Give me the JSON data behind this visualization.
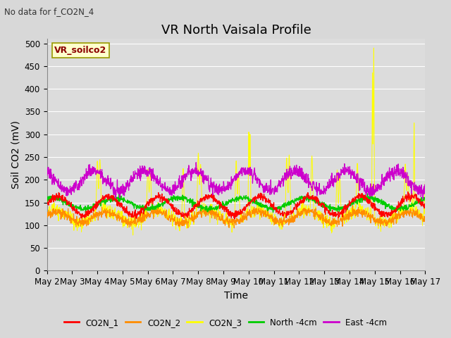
{
  "title": "VR North Vaisala Profile",
  "subtitle": "No data for f_CO2N_4",
  "ylabel": "Soil CO2 (mV)",
  "xlabel": "Time",
  "box_label": "VR_soilco2",
  "ylim": [
    0,
    510
  ],
  "yticks": [
    0,
    50,
    100,
    150,
    200,
    250,
    300,
    350,
    400,
    450,
    500
  ],
  "x_labels": [
    "May 2",
    "May 3",
    "May 4",
    "May 5",
    "May 6",
    "May 7",
    "May 8",
    "May 9",
    "May 10",
    "May 11",
    "May 12",
    "May 13",
    "May 14",
    "May 15",
    "May 16",
    "May 17"
  ],
  "n_points": 1500,
  "legend_entries": [
    "CO2N_1",
    "CO2N_2",
    "CO2N_3",
    "North -4cm",
    "East -4cm"
  ],
  "colors": {
    "CO2N_1": "#ff0000",
    "CO2N_2": "#ff8c00",
    "CO2N_3": "#ffff00",
    "North": "#00cc00",
    "East": "#cc00cc"
  },
  "background_color": "#dcdcdc",
  "grid_color": "#ffffff",
  "fig_bg": "#d8d8d8",
  "title_fontsize": 13,
  "label_fontsize": 10,
  "tick_fontsize": 8.5
}
